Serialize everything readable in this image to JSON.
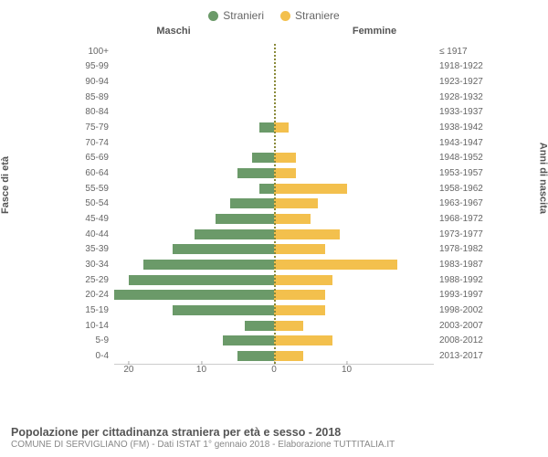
{
  "legend": {
    "male": {
      "label": "Stranieri",
      "color": "#6b9a69"
    },
    "female": {
      "label": "Straniere",
      "color": "#f3c04d"
    }
  },
  "chart": {
    "type": "population-pyramid",
    "column_headers": {
      "left": "Maschi",
      "right": "Femmine"
    },
    "y_axis_left_title": "Fasce di età",
    "y_axis_right_title": "Anni di nascita",
    "x_max": 22,
    "x_ticks": [
      20,
      10,
      0,
      10
    ],
    "bar_left_color": "#6b9a69",
    "bar_right_color": "#f3c04d",
    "background_color": "#ffffff",
    "rows": [
      {
        "age": "100+",
        "birth": "≤ 1917",
        "male": 0,
        "female": 0
      },
      {
        "age": "95-99",
        "birth": "1918-1922",
        "male": 0,
        "female": 0
      },
      {
        "age": "90-94",
        "birth": "1923-1927",
        "male": 0,
        "female": 0
      },
      {
        "age": "85-89",
        "birth": "1928-1932",
        "male": 0,
        "female": 0
      },
      {
        "age": "80-84",
        "birth": "1933-1937",
        "male": 0,
        "female": 0
      },
      {
        "age": "75-79",
        "birth": "1938-1942",
        "male": 2,
        "female": 2
      },
      {
        "age": "70-74",
        "birth": "1943-1947",
        "male": 0,
        "female": 0
      },
      {
        "age": "65-69",
        "birth": "1948-1952",
        "male": 3,
        "female": 3
      },
      {
        "age": "60-64",
        "birth": "1953-1957",
        "male": 5,
        "female": 3
      },
      {
        "age": "55-59",
        "birth": "1958-1962",
        "male": 2,
        "female": 10
      },
      {
        "age": "50-54",
        "birth": "1963-1967",
        "male": 6,
        "female": 6
      },
      {
        "age": "45-49",
        "birth": "1968-1972",
        "male": 8,
        "female": 5
      },
      {
        "age": "40-44",
        "birth": "1973-1977",
        "male": 11,
        "female": 9
      },
      {
        "age": "35-39",
        "birth": "1978-1982",
        "male": 14,
        "female": 7
      },
      {
        "age": "30-34",
        "birth": "1983-1987",
        "male": 18,
        "female": 17
      },
      {
        "age": "25-29",
        "birth": "1988-1992",
        "male": 20,
        "female": 8
      },
      {
        "age": "20-24",
        "birth": "1993-1997",
        "male": 22,
        "female": 7
      },
      {
        "age": "15-19",
        "birth": "1998-2002",
        "male": 14,
        "female": 7
      },
      {
        "age": "10-14",
        "birth": "2003-2007",
        "male": 4,
        "female": 4
      },
      {
        "age": "5-9",
        "birth": "2008-2012",
        "male": 7,
        "female": 8
      },
      {
        "age": "0-4",
        "birth": "2013-2017",
        "male": 5,
        "female": 4
      }
    ]
  },
  "footer": {
    "title": "Popolazione per cittadinanza straniera per età e sesso - 2018",
    "subtitle": "COMUNE DI SERVIGLIANO (FM) - Dati ISTAT 1° gennaio 2018 - Elaborazione TUTTITALIA.IT"
  }
}
